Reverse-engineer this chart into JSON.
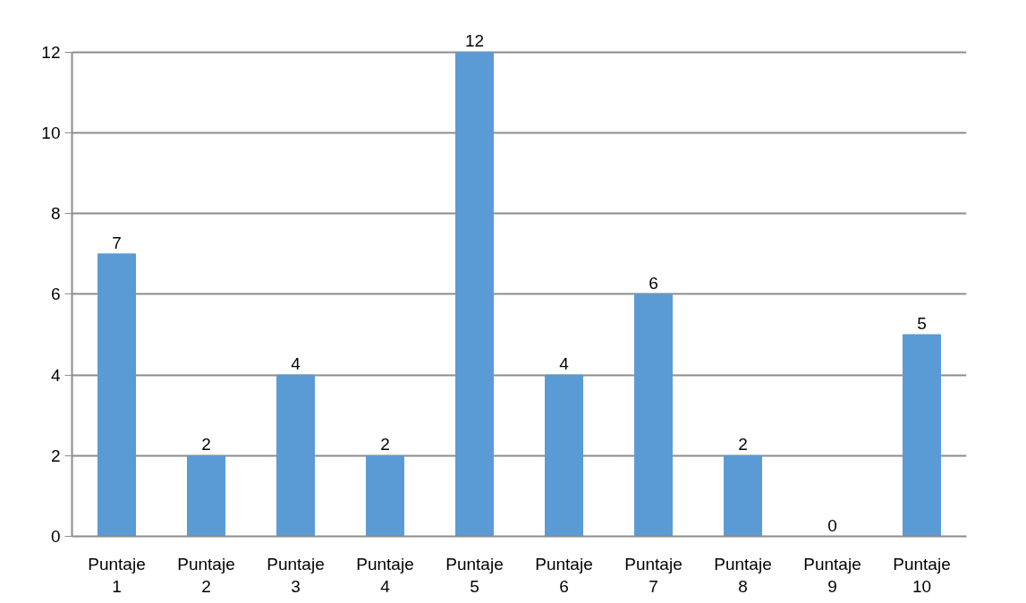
{
  "chart_data": {
    "type": "bar",
    "categories": [
      "Puntaje 1",
      "Puntaje 2",
      "Puntaje 3",
      "Puntaje 4",
      "Puntaje 5",
      "Puntaje 6",
      "Puntaje 7",
      "Puntaje 8",
      "Puntaje 9",
      "Puntaje 10"
    ],
    "values": [
      7,
      2,
      4,
      2,
      12,
      4,
      6,
      2,
      0,
      5
    ],
    "color": "#5b9bd5",
    "ylim": [
      0,
      12
    ],
    "yticks": [
      0,
      2,
      4,
      6,
      8,
      10,
      12
    ],
    "grid": "y",
    "data_labels": true
  }
}
